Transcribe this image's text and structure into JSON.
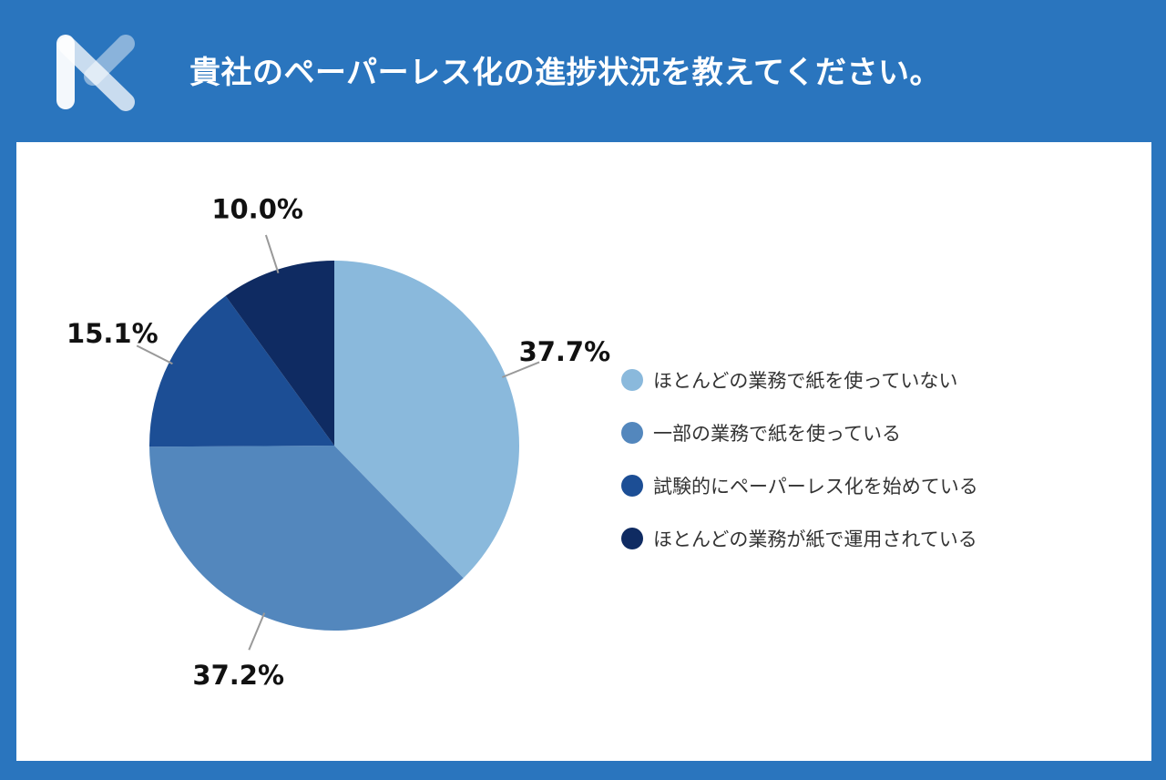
{
  "header": {
    "title": "貴社のペーパーレス化の進捗状況を教えてください。",
    "logo_icon": "x-logo-icon"
  },
  "colors": {
    "background": "#2a75be",
    "panel": "#ffffff"
  },
  "chart_data": {
    "type": "pie",
    "title": "貴社のペーパーレス化の進捗状況を教えてください。",
    "legend_position": "right",
    "unit": "%",
    "slices": [
      {
        "label": "ほとんどの業務で紙を使っていない",
        "value": 37.7,
        "value_label": "37.7%",
        "color": "#8ab9dc"
      },
      {
        "label": "一部の業務で紙を使っている",
        "value": 37.2,
        "value_label": "37.2%",
        "color": "#5387bd"
      },
      {
        "label": "試験的にペーパーレス化を始めている",
        "value": 15.1,
        "value_label": "15.1%",
        "color": "#1c4e95"
      },
      {
        "label": "ほとんどの業務が紙で運用されている",
        "value": 10.0,
        "value_label": "10.0%",
        "color": "#0f2b62"
      }
    ]
  }
}
